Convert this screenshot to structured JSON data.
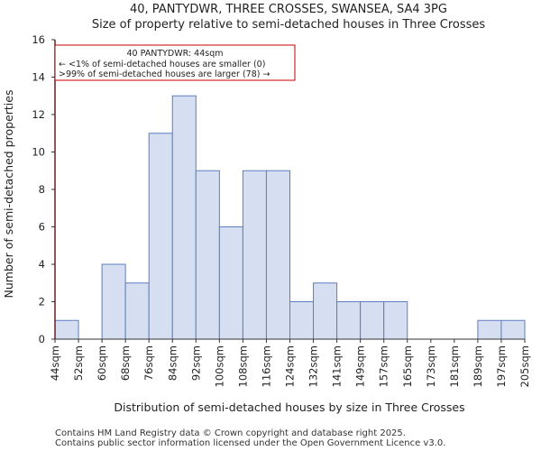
{
  "chart_data": {
    "type": "bar",
    "title_lines": [
      "40, PANTYDWR, THREE CROSSES, SWANSEA, SA4 3PG",
      "Size of property relative to semi-detached houses in Three Crosses"
    ],
    "xlabel": "Distribution of semi-detached houses by size in Three Crosses",
    "ylabel": "Number of semi-detached properties",
    "ylim": [
      0,
      16
    ],
    "yticks": [
      0,
      2,
      4,
      6,
      8,
      10,
      12,
      14,
      16
    ],
    "bin_edges": [
      "44sqm",
      "52sqm",
      "60sqm",
      "68sqm",
      "76sqm",
      "84sqm",
      "92sqm",
      "100sqm",
      "108sqm",
      "116sqm",
      "124sqm",
      "132sqm",
      "141sqm",
      "149sqm",
      "157sqm",
      "165sqm",
      "173sqm",
      "181sqm",
      "189sqm",
      "197sqm",
      "205sqm"
    ],
    "values": [
      1,
      0,
      4,
      3,
      11,
      13,
      9,
      6,
      9,
      9,
      2,
      3,
      2,
      2,
      2,
      0,
      0,
      0,
      1,
      1
    ],
    "bar_fill": "#d6dff2",
    "bar_edge": "#5b7fbf",
    "marker_color": "#cc0000",
    "marker_value": "44sqm",
    "annotation": {
      "line1": "40 PANTYDWR: 44sqm",
      "line2": "← <1% of semi-detached houses are smaller (0)",
      "line3": ">99% of semi-detached houses are larger (78) →"
    },
    "grid": false
  },
  "footer": {
    "line1": "Contains HM Land Registry data © Crown copyright and database right 2025.",
    "line2": "Contains public sector information licensed under the Open Government Licence v3.0."
  }
}
